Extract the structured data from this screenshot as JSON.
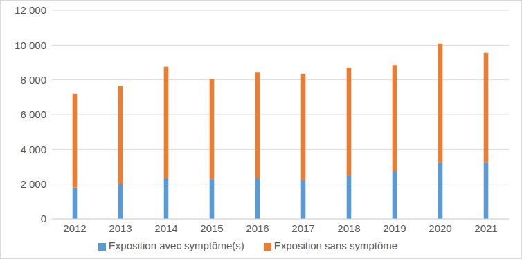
{
  "chart_data": {
    "type": "bar",
    "stacked": true,
    "categories": [
      "2012",
      "2013",
      "2014",
      "2015",
      "2016",
      "2017",
      "2018",
      "2019",
      "2020",
      "2021"
    ],
    "series": [
      {
        "name": "Exposition avec symptôme(s)",
        "color": "#5b9bd5",
        "values": [
          1800,
          2000,
          2350,
          2300,
          2350,
          2250,
          2500,
          2750,
          3250,
          3250
        ]
      },
      {
        "name": "Exposition sans symptôme",
        "color": "#ed7d31",
        "values": [
          5400,
          5650,
          6400,
          5750,
          6100,
          6100,
          6200,
          6100,
          6850,
          6300
        ]
      }
    ],
    "ylim": [
      0,
      12000
    ],
    "yticks": [
      0,
      {
        "value": 2000,
        "label": "2 000"
      },
      {
        "value": 4000,
        "label": "4 000"
      },
      {
        "value": 6000,
        "label": "6 000"
      },
      {
        "value": 8000,
        "label": "8 000"
      },
      {
        "value": 10000,
        "label": "10 000"
      },
      {
        "value": 12000,
        "label": "12 000"
      }
    ],
    "grid": true,
    "legend": "bottom"
  }
}
